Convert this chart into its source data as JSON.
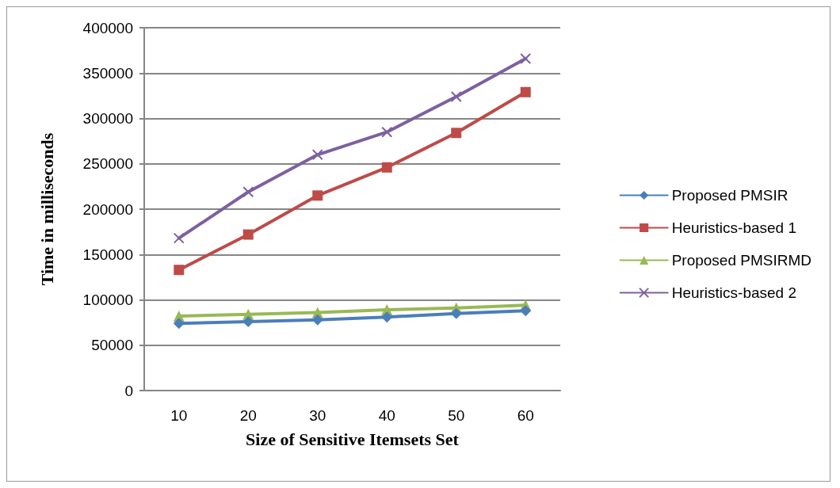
{
  "chart_data": {
    "type": "line",
    "xlabel": "Size of Sensitive Itemsets Set",
    "ylabel": "Time in milliseconds",
    "categories": [
      "10",
      "20",
      "30",
      "40",
      "50",
      "60"
    ],
    "series": [
      {
        "name": "Proposed PMSIR",
        "color": "#4a7ebb",
        "marker": "diamond",
        "values": [
          74000,
          76000,
          78000,
          81000,
          85000,
          88000
        ]
      },
      {
        "name": "Heuristics-based 1",
        "color": "#be4b48",
        "marker": "square",
        "values": [
          133000,
          172000,
          215000,
          246000,
          284000,
          329000
        ]
      },
      {
        "name": "Proposed PMSIRMD",
        "color": "#98b954",
        "marker": "triangle",
        "values": [
          82000,
          84000,
          86000,
          89000,
          91000,
          94000
        ]
      },
      {
        "name": "Heuristics-based 2",
        "color": "#7d60a0",
        "marker": "cross",
        "values": [
          168000,
          219000,
          260000,
          285000,
          324000,
          366000
        ]
      }
    ],
    "ylim": [
      0,
      400000
    ],
    "yticks": [
      0,
      50000,
      100000,
      150000,
      200000,
      250000,
      300000,
      350000,
      400000
    ],
    "grid": "y",
    "legend": "right",
    "line_style": "solid"
  }
}
